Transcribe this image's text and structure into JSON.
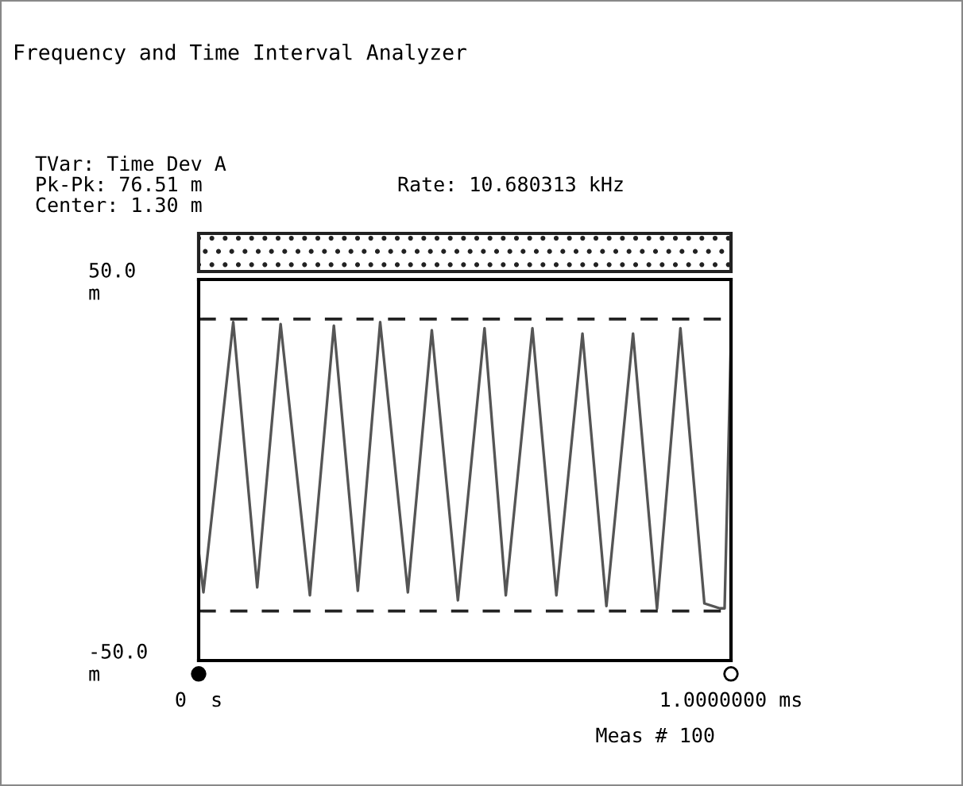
{
  "chart_data": {
    "type": "line",
    "title": "Frequency and Time Interval Analyzer",
    "annotations": [
      "TVar: Time Dev A",
      "Pk-Pk: 76.51 m",
      "Center: 1.30 m",
      "Rate: 10.680313 kHz",
      "Meas # 100"
    ],
    "x": [
      0,
      0.009,
      0.065,
      0.11,
      0.154,
      0.209,
      0.254,
      0.299,
      0.341,
      0.393,
      0.438,
      0.487,
      0.537,
      0.577,
      0.627,
      0.672,
      0.721,
      0.766,
      0.816,
      0.861,
      0.905,
      0.95,
      0.979,
      0.988,
      1.0
    ],
    "series": [
      {
        "color": "#555555",
        "values": [
          -21.3,
          -32.1,
          38.8,
          -30.8,
          38.3,
          -32.9,
          37.9,
          -31.7,
          38.8,
          -32.1,
          36.7,
          -34.2,
          37.2,
          -32.9,
          37.2,
          -32.9,
          35.8,
          -35.7,
          35.8,
          -36.4,
          37.2,
          -35.0,
          -36.3,
          -36.3,
          33.8
        ]
      }
    ],
    "xlim": [
      0,
      1
    ],
    "xticks": [
      {
        "value": 0,
        "label": "0  s"
      },
      {
        "value": 1,
        "label": "1.0000000 ms"
      }
    ],
    "ylim": [
      -50,
      50
    ],
    "yticks": [
      {
        "value": 50,
        "label": "50.0\nm"
      },
      {
        "value": -50,
        "label": "-50.0\nm"
      }
    ],
    "ref_lines": [
      {
        "axis": "y",
        "value": 39.6,
        "line_style": "dashed",
        "color": "#222222"
      },
      {
        "axis": "y",
        "value": -37.0,
        "line_style": "dashed",
        "color": "#222222"
      }
    ],
    "legend": false,
    "marker": "none",
    "line_style": "solid"
  }
}
